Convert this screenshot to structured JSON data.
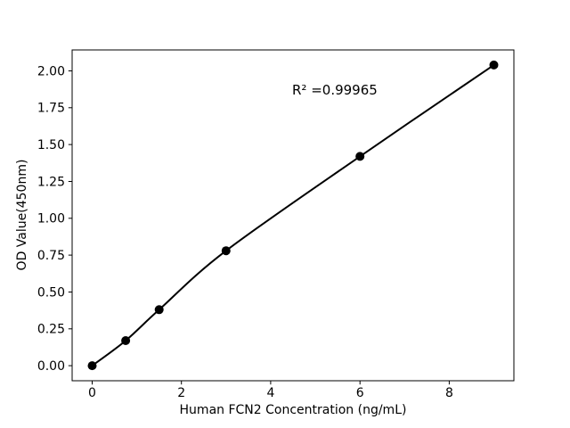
{
  "figure": {
    "background": "#ffffff"
  },
  "chart_data": {
    "type": "line",
    "title": "",
    "xlabel": "Human FCN2 Concentration (ng/mL)",
    "ylabel": "OD Value(450nm)",
    "annotation": "R² =0.99965",
    "r_squared": "0.99965",
    "x": [
      0,
      0.75,
      1.5,
      3,
      6,
      9
    ],
    "y": [
      0.0,
      0.17,
      0.38,
      0.78,
      1.42,
      2.04
    ],
    "xticks": [
      0,
      2,
      4,
      6,
      8
    ],
    "xtick_labels": [
      "0",
      "2",
      "4",
      "6",
      "8"
    ],
    "yticks": [
      0,
      0.25,
      0.5,
      0.75,
      1.0,
      1.25,
      1.5,
      1.75,
      2.0
    ],
    "ytick_labels": [
      "0.00",
      "0.25",
      "0.50",
      "0.75",
      "1.00",
      "1.25",
      "1.50",
      "1.75",
      "2.00"
    ],
    "xlim": [
      -0.45,
      9.45
    ],
    "ylim": [
      -0.102,
      2.142
    ],
    "grid": false,
    "legend_position": "none",
    "line_color": "#000000",
    "marker_color": "#000000",
    "axis_color": "#000000",
    "marker": "o"
  }
}
